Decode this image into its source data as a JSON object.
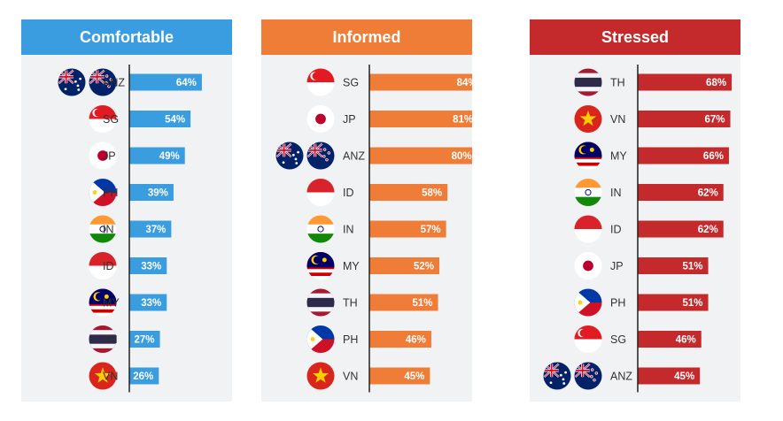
{
  "chart_data": [
    {
      "type": "bar",
      "title": "Comfortable",
      "color": "#3a9de0",
      "categories": [
        "ANZ",
        "SG",
        "JP",
        "PH",
        "IN",
        "ID",
        "MY",
        "TH",
        "VN"
      ],
      "values": [
        64,
        54,
        49,
        39,
        37,
        33,
        33,
        27,
        26
      ],
      "value_labels": [
        "64%",
        "54%",
        "49%",
        "39%",
        "37%",
        "33%",
        "33%",
        "27%",
        "26%"
      ],
      "xlim": [
        0,
        100
      ]
    },
    {
      "type": "bar",
      "title": "Informed",
      "color": "#ef7d37",
      "categories": [
        "SG",
        "JP",
        "ANZ",
        "ID",
        "IN",
        "MY",
        "TH",
        "PH",
        "VN"
      ],
      "values": [
        84,
        81,
        80,
        58,
        57,
        52,
        51,
        46,
        45
      ],
      "value_labels": [
        "84%",
        "81%",
        "80%",
        "58%",
        "57%",
        "52%",
        "51%",
        "46%",
        "45%"
      ],
      "xlim": [
        0,
        100
      ]
    },
    {
      "type": "bar",
      "title": "Stressed",
      "color": "#c4292b",
      "categories": [
        "TH",
        "VN",
        "MY",
        "IN",
        "ID",
        "JP",
        "PH",
        "SG",
        "ANZ"
      ],
      "values": [
        68,
        67,
        66,
        62,
        62,
        51,
        51,
        46,
        45
      ],
      "value_labels": [
        "68%",
        "67%",
        "66%",
        "62%",
        "62%",
        "51%",
        "51%",
        "46%",
        "45%"
      ],
      "xlim": [
        0,
        100
      ]
    }
  ]
}
